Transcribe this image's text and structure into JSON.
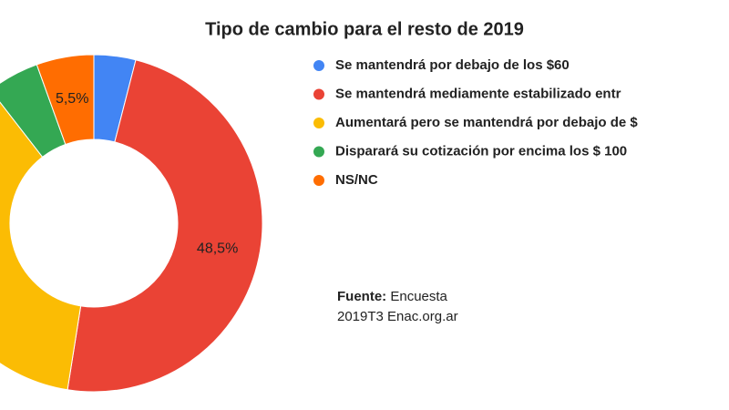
{
  "chart_data": {
    "type": "donut",
    "title": "Tipo de cambio para el resto de 2019",
    "categories": [
      "Se mantendrá por debajo de los $60",
      "Se mantendrá mediamente estabilizado entr",
      "Aumentará pero se mantendrá por debajo de $",
      "Disparará su cotización por encima los $ 100",
      "NS/NC"
    ],
    "values": [
      4,
      48.5,
      37,
      5,
      5.5
    ],
    "value_labels": [
      null,
      "48,5%",
      null,
      null,
      "5,5%"
    ],
    "colors": [
      "#4285f4",
      "#ea4335",
      "#fbbc04",
      "#34a853",
      "#ff6d01"
    ],
    "source_label": "Fuente:",
    "source_lines": [
      "Encuesta",
      "2019T3 Enac.org.ar"
    ]
  }
}
